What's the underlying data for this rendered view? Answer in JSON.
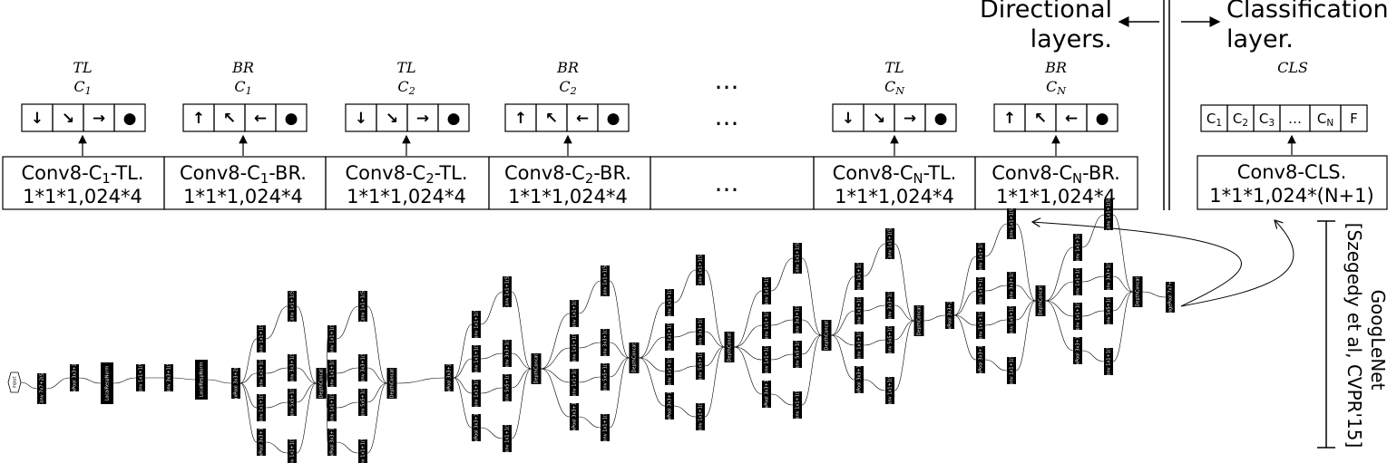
{
  "headers": {
    "directional": [
      "Directional",
      "layers."
    ],
    "classification": [
      "Classification",
      "layer."
    ]
  },
  "columns": [
    {
      "sup": "TL",
      "sub": "1",
      "glyphs": [
        "↓",
        "↘",
        "→",
        "●"
      ],
      "conv_prefix": "Conv8-C",
      "conv_sub": "1",
      "conv_suffix": "-TL.",
      "dims": "1*1*1,024*4"
    },
    {
      "sup": "BR",
      "sub": "1",
      "glyphs": [
        "↑",
        "↖",
        "←",
        "●"
      ],
      "conv_prefix": "Conv8-C",
      "conv_sub": "1",
      "conv_suffix": "-BR.",
      "dims": "1*1*1,024*4"
    },
    {
      "sup": "TL",
      "sub": "2",
      "glyphs": [
        "↓",
        "↘",
        "→",
        "●"
      ],
      "conv_prefix": "Conv8-C",
      "conv_sub": "2",
      "conv_suffix": "-TL.",
      "dims": "1*1*1,024*4"
    },
    {
      "sup": "BR",
      "sub": "2",
      "glyphs": [
        "↑",
        "↖",
        "←",
        "●"
      ],
      "conv_prefix": "Conv8-C",
      "conv_sub": "2",
      "conv_suffix": "-BR.",
      "dims": "1*1*1,024*4"
    },
    {
      "sup": "TL",
      "sub": "N",
      "glyphs": [
        "↓",
        "↘",
        "→",
        "●"
      ],
      "conv_prefix": "Conv8-C",
      "conv_sub": "N",
      "conv_suffix": "-TL.",
      "dims": "1*1*1,024*4"
    },
    {
      "sup": "BR",
      "sub": "N",
      "glyphs": [
        "↑",
        "↖",
        "←",
        "●"
      ],
      "conv_prefix": "Conv8-C",
      "conv_sub": "N",
      "conv_suffix": "-BR.",
      "dims": "1*1*1,024*4"
    }
  ],
  "ellipsis": "…",
  "cls": {
    "label": "CLS",
    "cells": [
      {
        "main": "C",
        "sub": "1"
      },
      {
        "main": "C",
        "sub": "2"
      },
      {
        "main": "C",
        "sub": "3"
      },
      {
        "main": "…",
        "sub": ""
      },
      {
        "main": "C",
        "sub": "N"
      },
      {
        "main": "F",
        "sub": ""
      }
    ],
    "conv": "Conv8-CLS.",
    "dims": "1*1*1,024*(N+1)"
  },
  "googlenet": {
    "name": "GoogLeNet",
    "citation": "[Szegedy et al, CVPR'15]"
  },
  "network_nodes": {
    "input": "input",
    "conv1": "Conv 7x7+2(S)",
    "maxpool": "MaxPool 3x3+2(S)",
    "lrn": "LocalRespNorm",
    "conv_1x1v": "Conv 1x1+1(V)",
    "conv_3x3": "Conv 3x3+1(S)",
    "conv_1x1": "Conv 1x1+1(S)",
    "conv_5x5": "Conv 5x5+1(S)",
    "maxpool_3x3_1": "MaxPool 3x3+1(S)",
    "depthconcat": "DepthConcat",
    "avgpool": "AveragePool 7x7+1(V)"
  }
}
